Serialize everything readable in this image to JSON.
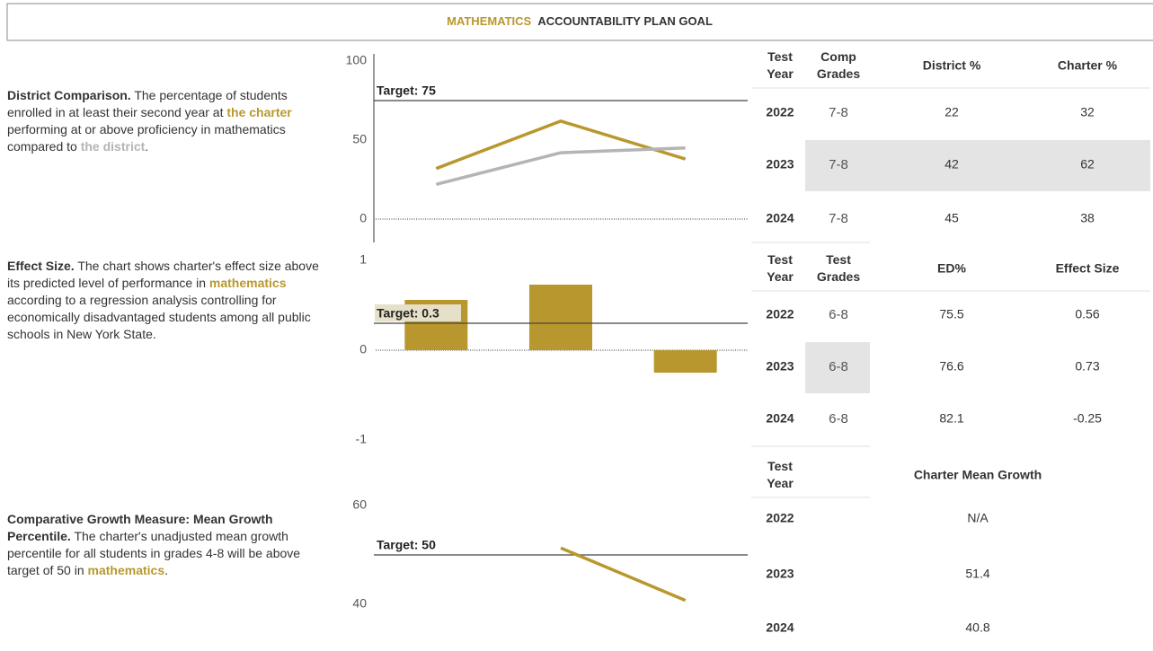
{
  "header": {
    "title_highlight": "MATHEMATICS",
    "title_rest": "ACCOUNTABILITY PLAN GOAL"
  },
  "descriptions": [
    {
      "parts": [
        {
          "text": "District Comparison.",
          "style": "bold"
        },
        {
          "text": " The percentage of students enrolled in at least their second year at ",
          "style": "plain"
        },
        {
          "text": "the charter",
          "style": "gold"
        },
        {
          "text": " performing at or above proficiency in mathematics compared to ",
          "style": "plain"
        },
        {
          "text": "the district",
          "style": "gray"
        },
        {
          "text": ".",
          "style": "plain"
        }
      ]
    },
    {
      "parts": [
        {
          "text": "Effect Size.",
          "style": "bold"
        },
        {
          "text": " The chart shows charter's effect size above its predicted level of performance in ",
          "style": "plain"
        },
        {
          "text": "mathematics",
          "style": "gold"
        },
        {
          "text": " according to a regression analysis controlling for economically disadvantaged students among all public schools in New York State.",
          "style": "plain"
        }
      ]
    },
    {
      "parts": [
        {
          "text": "Comparative Growth Measure: Mean Growth Percentile.",
          "style": "bold"
        },
        {
          "text": "  The charter's unadjusted mean growth percentile for all students in grades 4-8 will be above target of 50 in ",
          "style": "plain"
        },
        {
          "text": "mathematics",
          "style": "gold"
        },
        {
          "text": ".",
          "style": "plain"
        }
      ]
    }
  ],
  "chart_data": [
    {
      "type": "line",
      "ylim": [
        0,
        100
      ],
      "yticks": [
        0,
        50,
        100
      ],
      "target": {
        "value": 75,
        "label": "Target: 75"
      },
      "series": [
        {
          "color": "#b8982e",
          "values": [
            32,
            62,
            38
          ]
        },
        {
          "color": "#b4b4b4",
          "values": [
            22,
            42,
            45
          ]
        }
      ]
    },
    {
      "type": "bar",
      "ylim": [
        -1,
        1
      ],
      "yticks": [
        -1,
        0,
        1
      ],
      "target": {
        "value": 0.3,
        "label": "Target: 0.3"
      },
      "color": "#b8982e",
      "values": [
        0.56,
        0.73,
        -0.25
      ]
    },
    {
      "type": "line",
      "ylim": [
        40,
        60
      ],
      "yticks": [
        40,
        60
      ],
      "target": {
        "value": 50,
        "label": "Target: 50"
      },
      "series": [
        {
          "color": "#b8982e",
          "values": [
            null,
            51.4,
            40.8
          ]
        }
      ]
    }
  ],
  "tables": [
    {
      "header": [
        [
          "Test",
          "Year"
        ],
        [
          "Comp",
          "Grades"
        ],
        [
          "District %"
        ],
        [
          "Charter %"
        ]
      ],
      "rows": [
        [
          "2022",
          "7-8",
          "22",
          "32"
        ],
        [
          "2023",
          "7-8",
          "42",
          "62"
        ],
        [
          "2024",
          "7-8",
          "45",
          "38"
        ]
      ],
      "shaded": [
        [
          1,
          1
        ],
        [
          1,
          2
        ],
        [
          1,
          3
        ]
      ]
    },
    {
      "header": [
        [
          "Test",
          "Year"
        ],
        [
          "Test",
          "Grades"
        ],
        [
          "ED%"
        ],
        [
          "Effect Size"
        ]
      ],
      "rows": [
        [
          "2022",
          "6-8",
          "75.5",
          "0.56"
        ],
        [
          "2023",
          "6-8",
          "76.6",
          "0.73"
        ],
        [
          "2024",
          "6-8",
          "82.1",
          "-0.25"
        ]
      ],
      "shaded": [
        [
          1,
          1
        ]
      ]
    },
    {
      "header": [
        [
          "Test",
          "Year"
        ],
        [
          "Charter Mean Growth"
        ]
      ],
      "rows": [
        [
          "2022",
          "N/A"
        ],
        [
          "2023",
          "51.4"
        ],
        [
          "2024",
          "40.8"
        ]
      ],
      "shaded": []
    }
  ]
}
